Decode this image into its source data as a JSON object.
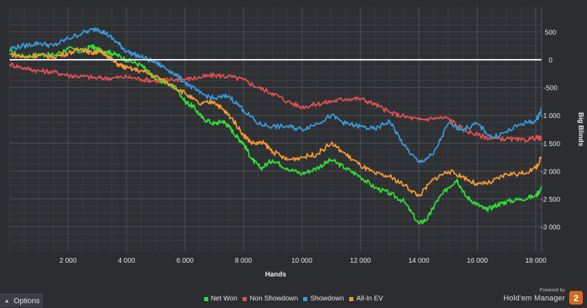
{
  "chart_data": {
    "type": "line",
    "xlabel": "Hands",
    "ylabel": "Big Blinds",
    "xlim": [
      0,
      18200
    ],
    "ylim": [
      -3450,
      950
    ],
    "x_ticks": [
      2000,
      4000,
      6000,
      8000,
      10000,
      12000,
      14000,
      16000,
      18000
    ],
    "x_tick_labels": [
      "2 000",
      "4 000",
      "6 000",
      "8 000",
      "10 000",
      "12 000",
      "14 000",
      "16 000",
      "18 000"
    ],
    "y_ticks": [
      500,
      0,
      -500,
      -1000,
      -1500,
      -2000,
      -2500,
      -3000
    ],
    "y_tick_labels": [
      "500",
      "0",
      "-500",
      "-1 000",
      "-1 500",
      "-2 000",
      "-2 500",
      "-3 000"
    ],
    "grid": true,
    "legend_position": "bottom-center",
    "series": [
      {
        "name": "Net Won",
        "color": "#33dd33",
        "points": [
          [
            0,
            150
          ],
          [
            500,
            50
          ],
          [
            1000,
            100
          ],
          [
            1500,
            80
          ],
          [
            2000,
            200
          ],
          [
            2500,
            140
          ],
          [
            2800,
            250
          ],
          [
            3000,
            180
          ],
          [
            3300,
            150
          ],
          [
            3600,
            100
          ],
          [
            4000,
            0
          ],
          [
            4500,
            -100
          ],
          [
            4800,
            -250
          ],
          [
            5000,
            -350
          ],
          [
            5300,
            -400
          ],
          [
            5700,
            -500
          ],
          [
            6000,
            -750
          ],
          [
            6300,
            -850
          ],
          [
            6600,
            -1050
          ],
          [
            7000,
            -1150
          ],
          [
            7300,
            -1100
          ],
          [
            7500,
            -1200
          ],
          [
            7800,
            -1400
          ],
          [
            8000,
            -1500
          ],
          [
            8300,
            -1800
          ],
          [
            8600,
            -1950
          ],
          [
            9000,
            -1800
          ],
          [
            9500,
            -1950
          ],
          [
            10000,
            -2050
          ],
          [
            10500,
            -1950
          ],
          [
            11000,
            -1800
          ],
          [
            11500,
            -1950
          ],
          [
            12000,
            -2100
          ],
          [
            12500,
            -2300
          ],
          [
            13000,
            -2400
          ],
          [
            13500,
            -2550
          ],
          [
            14000,
            -2950
          ],
          [
            14300,
            -2850
          ],
          [
            14600,
            -2550
          ],
          [
            15000,
            -2300
          ],
          [
            15300,
            -2150
          ],
          [
            15600,
            -2450
          ],
          [
            16000,
            -2600
          ],
          [
            16300,
            -2700
          ],
          [
            16700,
            -2600
          ],
          [
            17000,
            -2550
          ],
          [
            17500,
            -2500
          ],
          [
            18000,
            -2450
          ],
          [
            18200,
            -2300
          ]
        ]
      },
      {
        "name": "Non Showdown",
        "color": "#e05050",
        "points": [
          [
            0,
            -80
          ],
          [
            500,
            -150
          ],
          [
            1000,
            -200
          ],
          [
            1500,
            -220
          ],
          [
            2000,
            -280
          ],
          [
            2500,
            -300
          ],
          [
            3000,
            -330
          ],
          [
            3500,
            -330
          ],
          [
            4000,
            -310
          ],
          [
            4500,
            -350
          ],
          [
            5000,
            -380
          ],
          [
            5500,
            -360
          ],
          [
            6000,
            -350
          ],
          [
            6500,
            -320
          ],
          [
            7000,
            -280
          ],
          [
            7500,
            -300
          ],
          [
            8000,
            -360
          ],
          [
            8500,
            -500
          ],
          [
            9000,
            -600
          ],
          [
            9500,
            -750
          ],
          [
            10000,
            -850
          ],
          [
            10500,
            -800
          ],
          [
            11000,
            -750
          ],
          [
            11500,
            -700
          ],
          [
            12000,
            -700
          ],
          [
            12500,
            -800
          ],
          [
            13000,
            -950
          ],
          [
            13500,
            -1020
          ],
          [
            14000,
            -1080
          ],
          [
            14500,
            -1050
          ],
          [
            15000,
            -1050
          ],
          [
            15500,
            -1250
          ],
          [
            16000,
            -1350
          ],
          [
            16500,
            -1420
          ],
          [
            17000,
            -1420
          ],
          [
            17500,
            -1450
          ],
          [
            18000,
            -1400
          ],
          [
            18200,
            -1420
          ]
        ]
      },
      {
        "name": "Showdown",
        "color": "#3a9ad9",
        "points": [
          [
            0,
            200
          ],
          [
            500,
            250
          ],
          [
            1000,
            300
          ],
          [
            1500,
            250
          ],
          [
            2000,
            380
          ],
          [
            2500,
            480
          ],
          [
            3000,
            560
          ],
          [
            3300,
            470
          ],
          [
            3700,
            300
          ],
          [
            4000,
            150
          ],
          [
            4500,
            50
          ],
          [
            5000,
            -50
          ],
          [
            5500,
            -200
          ],
          [
            6000,
            -400
          ],
          [
            6500,
            -600
          ],
          [
            7000,
            -700
          ],
          [
            7500,
            -650
          ],
          [
            8000,
            -900
          ],
          [
            8500,
            -1150
          ],
          [
            9000,
            -1200
          ],
          [
            9500,
            -1200
          ],
          [
            10000,
            -1250
          ],
          [
            10500,
            -1150
          ],
          [
            11000,
            -1000
          ],
          [
            11500,
            -1150
          ],
          [
            12000,
            -1200
          ],
          [
            12500,
            -1250
          ],
          [
            13000,
            -1100
          ],
          [
            13500,
            -1550
          ],
          [
            14000,
            -1850
          ],
          [
            14500,
            -1700
          ],
          [
            15000,
            -1150
          ],
          [
            15500,
            -1250
          ],
          [
            16000,
            -1150
          ],
          [
            16500,
            -1400
          ],
          [
            17000,
            -1300
          ],
          [
            17500,
            -1150
          ],
          [
            18000,
            -1100
          ],
          [
            18200,
            -900
          ]
        ]
      },
      {
        "name": "All-In EV",
        "color": "#f59a2e",
        "points": [
          [
            0,
            100
          ],
          [
            500,
            50
          ],
          [
            1000,
            80
          ],
          [
            1500,
            50
          ],
          [
            2000,
            120
          ],
          [
            2500,
            200
          ],
          [
            2800,
            120
          ],
          [
            3000,
            150
          ],
          [
            3300,
            100
          ],
          [
            3600,
            -50
          ],
          [
            4000,
            -150
          ],
          [
            4500,
            -200
          ],
          [
            5000,
            -300
          ],
          [
            5500,
            -450
          ],
          [
            6000,
            -600
          ],
          [
            6500,
            -800
          ],
          [
            7000,
            -750
          ],
          [
            7300,
            -900
          ],
          [
            7600,
            -1050
          ],
          [
            8000,
            -1350
          ],
          [
            8300,
            -1500
          ],
          [
            8700,
            -1500
          ],
          [
            9000,
            -1650
          ],
          [
            9500,
            -1800
          ],
          [
            10000,
            -1750
          ],
          [
            10500,
            -1700
          ],
          [
            11000,
            -1500
          ],
          [
            11500,
            -1700
          ],
          [
            12000,
            -1900
          ],
          [
            12500,
            -2050
          ],
          [
            13000,
            -2100
          ],
          [
            13500,
            -2250
          ],
          [
            14000,
            -2450
          ],
          [
            14500,
            -2150
          ],
          [
            15000,
            -2000
          ],
          [
            15500,
            -2100
          ],
          [
            16000,
            -2250
          ],
          [
            16500,
            -2200
          ],
          [
            17000,
            -2050
          ],
          [
            17500,
            -2050
          ],
          [
            18000,
            -1950
          ],
          [
            18200,
            -1750
          ]
        ]
      }
    ]
  },
  "ui": {
    "options_label": "Options",
    "powered_by": "Powered by",
    "brand_name": "Hold'em Manager",
    "brand_logo_text": "2"
  }
}
